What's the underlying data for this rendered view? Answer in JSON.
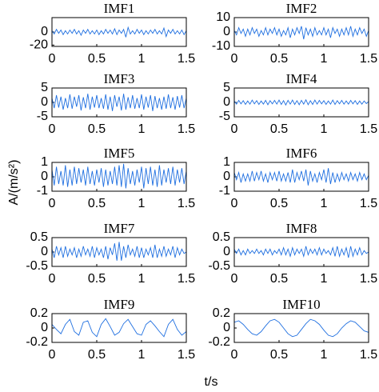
{
  "figure": {
    "ylabel": "A/(m/s²)",
    "xlabel": "t/s"
  },
  "chart_data": [
    {
      "type": "line",
      "title": "IMF1",
      "color": "#1f6fe0",
      "xlim": [
        0,
        1.5
      ],
      "xticks": [
        0,
        0.5,
        1,
        1.5
      ],
      "ylim": [
        -22,
        22
      ],
      "yticks": [
        -20,
        0
      ],
      "x": [
        0,
        0.025,
        0.05,
        0.075,
        0.1,
        0.125,
        0.15,
        0.175,
        0.2,
        0.225,
        0.25,
        0.275,
        0.3,
        0.325,
        0.35,
        0.375,
        0.4,
        0.425,
        0.45,
        0.475,
        0.5,
        0.525,
        0.55,
        0.575,
        0.6,
        0.625,
        0.65,
        0.675,
        0.7,
        0.725,
        0.75,
        0.775,
        0.8,
        0.825,
        0.85,
        0.875,
        0.9,
        0.925,
        0.95,
        0.975,
        1,
        1.025,
        1.05,
        1.075,
        1.1,
        1.125,
        1.15,
        1.175,
        1.2,
        1.225,
        1.25,
        1.275,
        1.3,
        1.325,
        1.35,
        1.375,
        1.4,
        1.425,
        1.45,
        1.475,
        1.5
      ],
      "values": [
        2,
        -3,
        4,
        -2,
        3,
        -4,
        2,
        -3,
        3,
        -2,
        4,
        -3,
        2,
        -5,
        3,
        -2,
        4,
        -3,
        2,
        -3,
        3,
        -4,
        2,
        -3,
        4,
        -2,
        3,
        -3,
        5,
        -4,
        3,
        -2,
        4,
        -8,
        7,
        -3,
        2,
        -3,
        4,
        -2,
        3,
        -4,
        2,
        -3,
        3,
        -2,
        4,
        -3,
        2,
        -3,
        6,
        -7,
        3,
        -2,
        4,
        -3,
        2,
        -3,
        3,
        -4,
        2
      ]
    },
    {
      "type": "line",
      "title": "IMF2",
      "color": "#1f6fe0",
      "xlim": [
        0,
        1.5
      ],
      "xticks": [
        0,
        0.5,
        1,
        1.5
      ],
      "ylim": [
        -10,
        10
      ],
      "yticks": [
        -10,
        0,
        10
      ],
      "x": [
        0,
        0.025,
        0.05,
        0.075,
        0.1,
        0.125,
        0.15,
        0.175,
        0.2,
        0.225,
        0.25,
        0.275,
        0.3,
        0.325,
        0.35,
        0.375,
        0.4,
        0.425,
        0.45,
        0.475,
        0.5,
        0.525,
        0.55,
        0.575,
        0.6,
        0.625,
        0.65,
        0.675,
        0.7,
        0.725,
        0.75,
        0.775,
        0.8,
        0.825,
        0.85,
        0.875,
        0.9,
        0.925,
        0.95,
        0.975,
        1,
        1.025,
        1.05,
        1.075,
        1.1,
        1.125,
        1.15,
        1.175,
        1.2,
        1.225,
        1.25,
        1.275,
        1.3,
        1.325,
        1.35,
        1.375,
        1.4,
        1.425,
        1.45,
        1.475,
        1.5
      ],
      "values": [
        1,
        -2,
        3,
        -1,
        2,
        -3,
        2,
        -2,
        3,
        -1,
        2,
        -3,
        1,
        -2,
        3,
        -2,
        2,
        -1,
        3,
        -2,
        2,
        -3,
        1,
        -2,
        3,
        -4,
        2,
        -2,
        3,
        -1,
        4,
        -5,
        3,
        -2,
        2,
        -3,
        3,
        -2,
        1,
        -2,
        3,
        -2,
        2,
        -4,
        3,
        -1,
        2,
        -3,
        2,
        -2,
        3,
        -2,
        4,
        -3,
        2,
        -2,
        3,
        -1,
        2,
        -3,
        1
      ]
    },
    {
      "type": "line",
      "title": "IMF3",
      "color": "#1f6fe0",
      "xlim": [
        0,
        1.5
      ],
      "xticks": [
        0,
        0.5,
        1,
        1.5
      ],
      "ylim": [
        -5,
        5
      ],
      "yticks": [
        -5,
        0,
        5
      ],
      "x": [
        0,
        0.025,
        0.05,
        0.075,
        0.1,
        0.125,
        0.15,
        0.175,
        0.2,
        0.225,
        0.25,
        0.275,
        0.3,
        0.325,
        0.35,
        0.375,
        0.4,
        0.425,
        0.45,
        0.475,
        0.5,
        0.525,
        0.55,
        0.575,
        0.6,
        0.625,
        0.65,
        0.675,
        0.7,
        0.725,
        0.75,
        0.775,
        0.8,
        0.825,
        0.85,
        0.875,
        0.9,
        0.925,
        0.95,
        0.975,
        1,
        1.025,
        1.05,
        1.075,
        1.1,
        1.125,
        1.15,
        1.175,
        1.2,
        1.225,
        1.25,
        1.275,
        1.3,
        1.325,
        1.35,
        1.375,
        1.4,
        1.425,
        1.45,
        1.475,
        1.5
      ],
      "values": [
        1.5,
        -2,
        2.5,
        -1.8,
        2,
        -2.5,
        1.5,
        -2,
        2.8,
        -2.2,
        2,
        -1.5,
        2.5,
        -2.8,
        1.8,
        -2,
        3,
        -2.5,
        2,
        -1.8,
        2.5,
        -2,
        1.5,
        -2.2,
        2.8,
        -2.5,
        2,
        -3,
        2.5,
        -1.5,
        2,
        -2.8,
        3,
        -2.5,
        1.8,
        -2,
        2.5,
        -2.2,
        1.5,
        -2,
        2.8,
        -2.5,
        2,
        -1.8,
        2.5,
        -3,
        2.2,
        -2,
        1.5,
        -2.5,
        2,
        -2.2,
        2.8,
        -2,
        1.8,
        -2.5,
        2.2,
        -1.8,
        2.5,
        -2,
        1.5
      ]
    },
    {
      "type": "line",
      "title": "IMF4",
      "color": "#1f6fe0",
      "xlim": [
        0,
        1.5
      ],
      "xticks": [
        0,
        0.5,
        1,
        1.5
      ],
      "ylim": [
        -5,
        5
      ],
      "yticks": [
        -5,
        0,
        5
      ],
      "x": [
        0,
        0.025,
        0.05,
        0.075,
        0.1,
        0.125,
        0.15,
        0.175,
        0.2,
        0.225,
        0.25,
        0.275,
        0.3,
        0.325,
        0.35,
        0.375,
        0.4,
        0.425,
        0.45,
        0.475,
        0.5,
        0.525,
        0.55,
        0.575,
        0.6,
        0.625,
        0.65,
        0.675,
        0.7,
        0.725,
        0.75,
        0.775,
        0.8,
        0.825,
        0.85,
        0.875,
        0.9,
        0.925,
        0.95,
        0.975,
        1,
        1.025,
        1.05,
        1.075,
        1.1,
        1.125,
        1.15,
        1.175,
        1.2,
        1.225,
        1.25,
        1.275,
        1.3,
        1.325,
        1.35,
        1.375,
        1.4,
        1.425,
        1.45,
        1.475,
        1.5
      ],
      "values": [
        0.5,
        -0.6,
        0.7,
        -0.5,
        0.6,
        -0.7,
        0.5,
        -0.6,
        0.8,
        -0.5,
        0.6,
        -0.7,
        0.5,
        -0.6,
        0.7,
        -0.8,
        0.6,
        -0.5,
        0.7,
        -0.6,
        0.8,
        -0.7,
        0.6,
        -0.9,
        0.7,
        -0.6,
        0.8,
        -0.7,
        0.6,
        -0.8,
        0.7,
        -0.6,
        0.9,
        -0.8,
        0.6,
        -0.7,
        0.8,
        -0.6,
        0.7,
        -0.5,
        0.6,
        -0.7,
        0.5,
        -0.6,
        0.8,
        -0.7,
        0.6,
        -0.5,
        0.7,
        -0.6,
        0.5,
        -0.6,
        0.7,
        -0.5,
        0.6,
        -0.7,
        0.5,
        -0.6,
        0.5,
        -0.4,
        0.3
      ]
    },
    {
      "type": "line",
      "title": "IMF5",
      "color": "#1f6fe0",
      "xlim": [
        0,
        1.5
      ],
      "xticks": [
        0,
        0.5,
        1,
        1.5
      ],
      "ylim": [
        -1,
        1
      ],
      "yticks": [
        -1,
        0,
        1
      ],
      "x": [
        0,
        0.025,
        0.05,
        0.075,
        0.1,
        0.125,
        0.15,
        0.175,
        0.2,
        0.225,
        0.25,
        0.275,
        0.3,
        0.325,
        0.35,
        0.375,
        0.4,
        0.425,
        0.45,
        0.475,
        0.5,
        0.525,
        0.55,
        0.575,
        0.6,
        0.625,
        0.65,
        0.675,
        0.7,
        0.725,
        0.75,
        0.775,
        0.8,
        0.825,
        0.85,
        0.875,
        0.9,
        0.925,
        0.95,
        0.975,
        1,
        1.025,
        1.05,
        1.075,
        1.1,
        1.125,
        1.15,
        1.175,
        1.2,
        1.225,
        1.25,
        1.275,
        1.3,
        1.325,
        1.35,
        1.375,
        1.4,
        1.425,
        1.45,
        1.475,
        1.5
      ],
      "values": [
        0.5,
        -0.6,
        0.7,
        -0.5,
        0.4,
        -0.6,
        0.8,
        -0.7,
        0.5,
        -0.6,
        0.7,
        -0.5,
        0.6,
        -0.4,
        0.5,
        -0.6,
        0.7,
        -0.5,
        0.4,
        -0.6,
        0.5,
        -0.4,
        0.6,
        -0.7,
        0.5,
        -0.6,
        0.4,
        -0.5,
        0.7,
        -0.6,
        0.8,
        -0.7,
        0.9,
        -0.8,
        0.6,
        -0.5,
        0.4,
        -0.6,
        0.5,
        -0.4,
        0.7,
        -0.8,
        0.6,
        -0.5,
        0.7,
        -0.6,
        0.5,
        -0.7,
        0.8,
        -0.6,
        0.5,
        -0.4,
        0.6,
        -0.5,
        0.7,
        -0.6,
        0.5,
        -0.4,
        0.6,
        -0.5,
        0.4
      ]
    },
    {
      "type": "line",
      "title": "IMF6",
      "color": "#1f6fe0",
      "xlim": [
        0,
        1.5
      ],
      "xticks": [
        0,
        0.5,
        1,
        1.5
      ],
      "ylim": [
        -1,
        1
      ],
      "yticks": [
        -1,
        0,
        1
      ],
      "x": [
        0,
        0.025,
        0.05,
        0.075,
        0.1,
        0.125,
        0.15,
        0.175,
        0.2,
        0.225,
        0.25,
        0.275,
        0.3,
        0.325,
        0.35,
        0.375,
        0.4,
        0.425,
        0.45,
        0.475,
        0.5,
        0.525,
        0.55,
        0.575,
        0.6,
        0.625,
        0.65,
        0.675,
        0.7,
        0.725,
        0.75,
        0.775,
        0.8,
        0.825,
        0.85,
        0.875,
        0.9,
        0.925,
        0.95,
        0.975,
        1,
        1.025,
        1.05,
        1.075,
        1.1,
        1.125,
        1.15,
        1.175,
        1.2,
        1.225,
        1.25,
        1.275,
        1.3,
        1.325,
        1.35,
        1.375,
        1.4,
        1.425,
        1.45,
        1.475,
        1.5
      ],
      "values": [
        0.3,
        -0.2,
        0.3,
        -0.4,
        0.2,
        -0.3,
        0.2,
        -0.3,
        0.4,
        -0.3,
        0.3,
        -0.2,
        0.4,
        -0.3,
        0.2,
        -0.4,
        0.3,
        -0.2,
        0.3,
        -0.3,
        0.4,
        -0.3,
        0.2,
        -0.3,
        0.3,
        -0.4,
        0.5,
        -0.4,
        0.3,
        -0.2,
        0.4,
        -0.3,
        0.5,
        -0.6,
        0.4,
        -0.3,
        0.2,
        -0.4,
        0.3,
        -0.2,
        0.5,
        -0.4,
        0.6,
        -0.5,
        0.3,
        -0.4,
        0.2,
        -0.3,
        0.3,
        -0.2,
        0.2,
        -0.3,
        0.3,
        -0.2,
        0.2,
        -0.3,
        0.3,
        -0.2,
        0.2,
        -0.2,
        0.1
      ]
    },
    {
      "type": "line",
      "title": "IMF7",
      "color": "#1f6fe0",
      "xlim": [
        0,
        1.5
      ],
      "xticks": [
        0,
        0.5,
        1,
        1.5
      ],
      "ylim": [
        -0.5,
        0.5
      ],
      "yticks": [
        -0.5,
        0,
        0.5
      ],
      "x": [
        0,
        0.025,
        0.05,
        0.075,
        0.1,
        0.125,
        0.15,
        0.175,
        0.2,
        0.225,
        0.25,
        0.275,
        0.3,
        0.325,
        0.35,
        0.375,
        0.4,
        0.425,
        0.45,
        0.475,
        0.5,
        0.525,
        0.55,
        0.575,
        0.6,
        0.625,
        0.65,
        0.675,
        0.7,
        0.725,
        0.75,
        0.775,
        0.8,
        0.825,
        0.85,
        0.875,
        0.9,
        0.925,
        0.95,
        0.975,
        1,
        1.025,
        1.05,
        1.075,
        1.1,
        1.125,
        1.15,
        1.175,
        1.2,
        1.225,
        1.25,
        1.275,
        1.3,
        1.325,
        1.35,
        1.375,
        1.4,
        1.425,
        1.45,
        1.475,
        1.5
      ],
      "values": [
        0.1,
        -0.2,
        0.2,
        -0.1,
        0.15,
        -0.2,
        0.2,
        -0.15,
        0.1,
        -0.1,
        0.15,
        -0.2,
        0.1,
        -0.15,
        0.2,
        -0.1,
        0.1,
        -0.15,
        0.2,
        -0.2,
        0.15,
        -0.1,
        0.1,
        -0.2,
        0.2,
        -0.25,
        0.15,
        -0.1,
        0.3,
        -0.3,
        0.35,
        -0.3,
        0.2,
        -0.2,
        0.25,
        -0.1,
        0.1,
        -0.15,
        0.2,
        -0.2,
        0.15,
        -0.2,
        0.1,
        -0.1,
        0.15,
        -0.2,
        0.25,
        -0.2,
        0.1,
        -0.15,
        0.2,
        -0.15,
        0.1,
        -0.1,
        0.2,
        -0.2,
        0.15,
        -0.1,
        0.1,
        -0.05,
        0
      ]
    },
    {
      "type": "line",
      "title": "IMF8",
      "color": "#1f6fe0",
      "xlim": [
        0,
        1.5
      ],
      "xticks": [
        0,
        0.5,
        1,
        1.5
      ],
      "ylim": [
        -0.5,
        0.5
      ],
      "yticks": [
        -0.5,
        0,
        0.5
      ],
      "x": [
        0,
        0.025,
        0.05,
        0.075,
        0.1,
        0.125,
        0.15,
        0.175,
        0.2,
        0.225,
        0.25,
        0.275,
        0.3,
        0.325,
        0.35,
        0.375,
        0.4,
        0.425,
        0.45,
        0.475,
        0.5,
        0.525,
        0.55,
        0.575,
        0.6,
        0.625,
        0.65,
        0.675,
        0.7,
        0.725,
        0.75,
        0.775,
        0.8,
        0.825,
        0.85,
        0.875,
        0.9,
        0.925,
        0.95,
        0.975,
        1,
        1.025,
        1.05,
        1.075,
        1.1,
        1.125,
        1.15,
        1.175,
        1.2,
        1.225,
        1.25,
        1.275,
        1.3,
        1.325,
        1.35,
        1.375,
        1.4,
        1.425,
        1.45,
        1.475,
        1.5
      ],
      "values": [
        0.1,
        -0.05,
        0.1,
        -0.1,
        0.05,
        -0.1,
        0.1,
        -0.05,
        0.05,
        -0.05,
        0.1,
        -0.05,
        0.05,
        -0.1,
        0.1,
        -0.05,
        0.1,
        -0.1,
        0.05,
        -0.05,
        0.1,
        -0.1,
        0.15,
        -0.1,
        0.1,
        -0.15,
        0.15,
        -0.1,
        0.1,
        -0.05,
        0.1,
        -0.15,
        0.2,
        -0.1,
        0.1,
        -0.05,
        0.1,
        -0.1,
        0.15,
        -0.1,
        0.1,
        -0.05,
        0.05,
        -0.1,
        0.15,
        -0.15,
        0.2,
        -0.15,
        0.1,
        -0.1,
        0.15,
        -0.2,
        0.2,
        -0.15,
        0.1,
        -0.1,
        0.15,
        -0.1,
        0.05,
        -0.05,
        0
      ]
    },
    {
      "type": "line",
      "title": "IMF9",
      "color": "#1f6fe0",
      "xlim": [
        0,
        1.5
      ],
      "xticks": [
        0,
        0.5,
        1,
        1.5
      ],
      "ylim": [
        -0.2,
        0.2
      ],
      "yticks": [
        -0.2,
        0,
        0.2
      ],
      "x": [
        0,
        0.05,
        0.1,
        0.15,
        0.2,
        0.25,
        0.3,
        0.35,
        0.4,
        0.45,
        0.5,
        0.55,
        0.6,
        0.65,
        0.7,
        0.75,
        0.8,
        0.85,
        0.9,
        0.95,
        1,
        1.05,
        1.1,
        1.15,
        1.2,
        1.25,
        1.3,
        1.35,
        1.4,
        1.45,
        1.5
      ],
      "values": [
        0.05,
        -0.02,
        -0.08,
        0.05,
        0.12,
        -0.05,
        -0.1,
        0.08,
        0.1,
        -0.06,
        -0.12,
        0.05,
        0.13,
        0.02,
        -0.1,
        -0.06,
        0.06,
        0.12,
        0.02,
        -0.08,
        -0.1,
        0.05,
        0.1,
        0.03,
        -0.05,
        -0.12,
        0.05,
        0.12,
        -0.02,
        -0.1,
        -0.05
      ]
    },
    {
      "type": "line",
      "title": "IMF10",
      "color": "#1f6fe0",
      "xlim": [
        0,
        1.5
      ],
      "xticks": [
        0,
        0.5,
        1,
        1.5
      ],
      "ylim": [
        -0.2,
        0.2
      ],
      "yticks": [
        -0.2,
        0,
        0.2
      ],
      "x": [
        0,
        0.05,
        0.1,
        0.15,
        0.2,
        0.25,
        0.3,
        0.35,
        0.4,
        0.45,
        0.5,
        0.55,
        0.6,
        0.65,
        0.7,
        0.75,
        0.8,
        0.85,
        0.9,
        0.95,
        1,
        1.05,
        1.1,
        1.15,
        1.2,
        1.25,
        1.3,
        1.35,
        1.4,
        1.45,
        1.5
      ],
      "values": [
        0.08,
        0.1,
        0.05,
        -0.02,
        -0.08,
        -0.1,
        -0.05,
        0.03,
        0.1,
        0.12,
        0.08,
        0,
        -0.08,
        -0.12,
        -0.1,
        -0.02,
        0.06,
        0.12,
        0.1,
        0.05,
        -0.03,
        -0.1,
        -0.12,
        -0.08,
        0,
        0.06,
        0.1,
        0.08,
        0.02,
        -0.04,
        -0.06
      ]
    }
  ]
}
